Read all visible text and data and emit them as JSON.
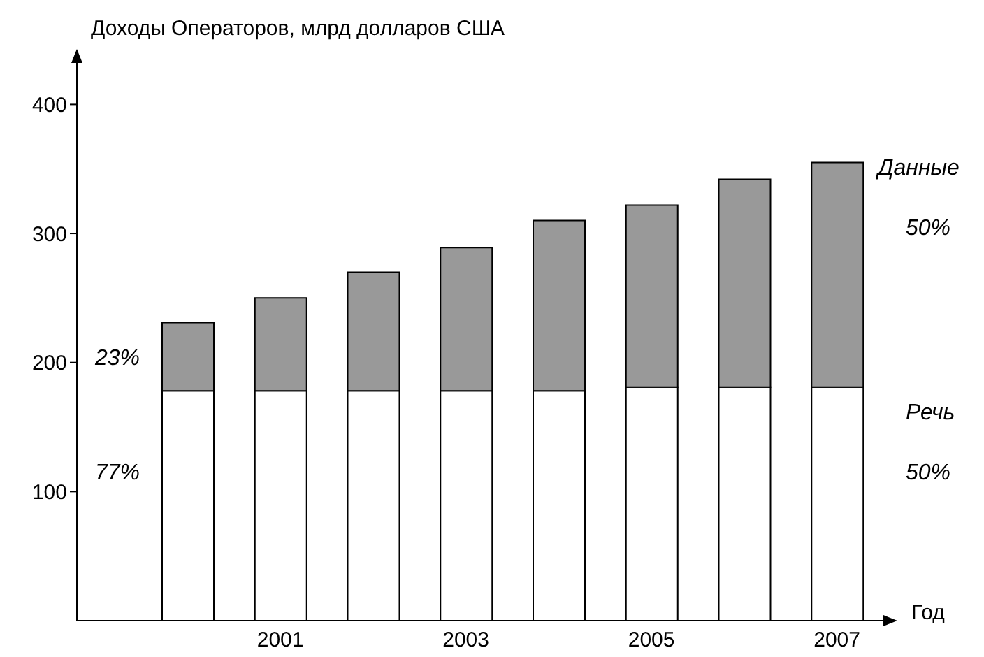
{
  "chart_data": {
    "type": "bar",
    "stacked": true,
    "ylabel": "Доходы Операторов, млрд долларов США",
    "xlabel": "Год",
    "categories": [
      null,
      "2001",
      null,
      "2003",
      null,
      "2005",
      null,
      "2007"
    ],
    "series": [
      {
        "name": "Речь",
        "color": "#ffffff",
        "values": [
          178,
          178,
          178,
          178,
          178,
          181,
          181,
          181
        ]
      },
      {
        "name": "Данные",
        "color": "#999999",
        "values": [
          53,
          72,
          92,
          111,
          132,
          141,
          161,
          174
        ]
      }
    ],
    "ylim": [
      0,
      430
    ],
    "yticks": [
      100,
      200,
      300,
      400
    ],
    "annotations": [
      "23%",
      "77%",
      "50%",
      "50%"
    ]
  }
}
